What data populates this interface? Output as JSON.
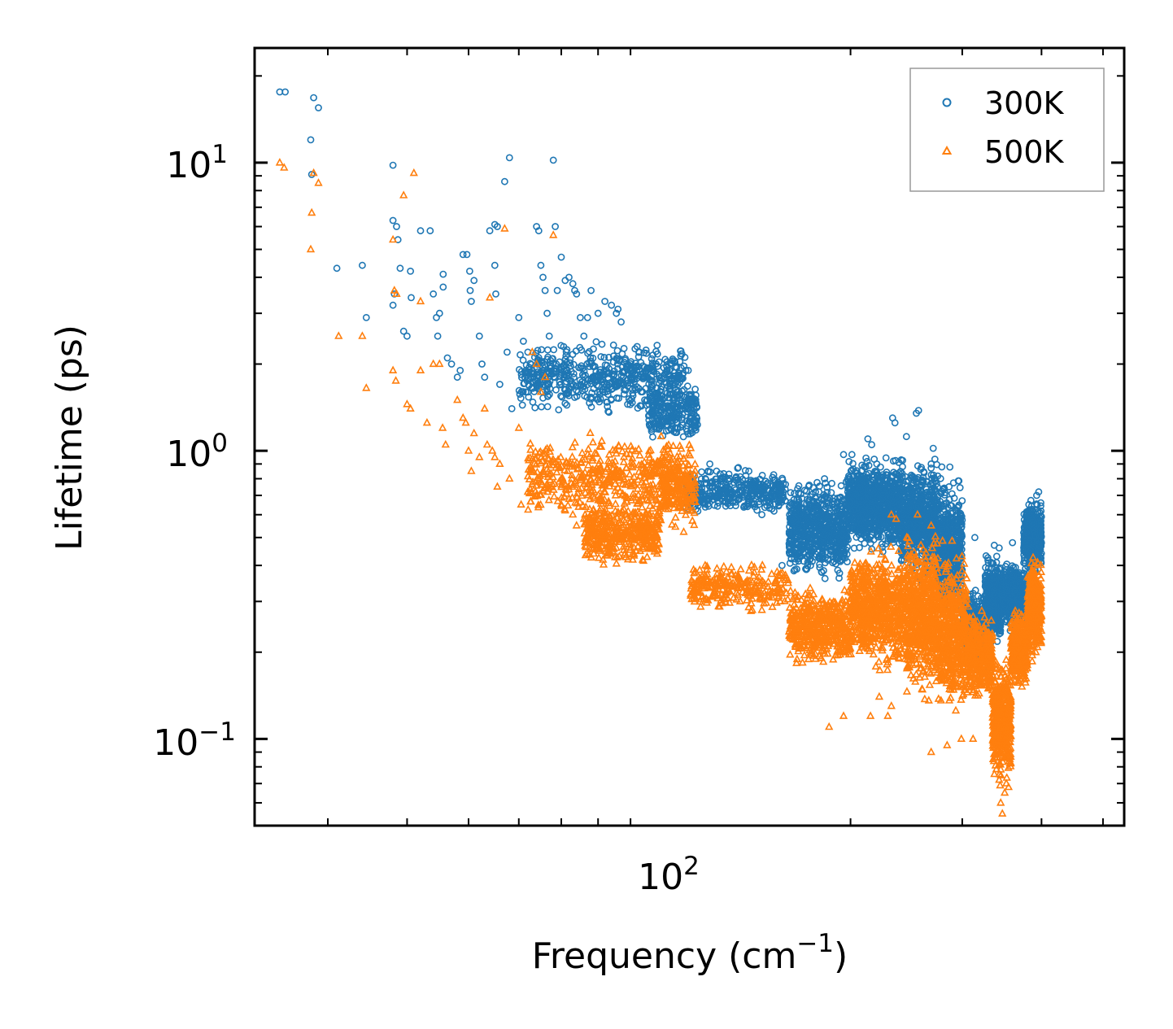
{
  "chart_data": {
    "type": "scatter",
    "title": "",
    "xlabel": "Frequency (cm",
    "xlabel_sup": "−1",
    "xlabel_end": ")",
    "ylabel": "Lifetime (ps)",
    "xscale": "log",
    "yscale": "log",
    "xlim": [
      23,
      540
    ],
    "ylim": [
      0.05,
      25
    ],
    "x_major_ticks": [
      {
        "value": 100,
        "base": "10",
        "exp": "2"
      }
    ],
    "y_major_ticks": [
      {
        "value": 0.1,
        "base": "10",
        "exp": "−1"
      },
      {
        "value": 1,
        "base": "10",
        "exp": "0"
      },
      {
        "value": 10,
        "base": "10",
        "exp": "1"
      }
    ],
    "legend_position": "top-right",
    "series": [
      {
        "name": "300K",
        "color": "#1f77b4",
        "marker": "circle",
        "points": [
          [
            25.2,
            17.6
          ],
          [
            25.7,
            17.6
          ],
          [
            28.5,
            16.8
          ],
          [
            29.0,
            15.5
          ],
          [
            28.2,
            12.0
          ],
          [
            28.3,
            9.1
          ],
          [
            31.0,
            4.3
          ],
          [
            34.0,
            4.4
          ],
          [
            34.5,
            2.9
          ],
          [
            38.0,
            9.8
          ],
          [
            38.0,
            6.3
          ],
          [
            38.5,
            6.0
          ],
          [
            38.7,
            5.4
          ],
          [
            39.0,
            4.3
          ],
          [
            38.2,
            3.5
          ],
          [
            38.0,
            3.2
          ],
          [
            39.5,
            2.6
          ],
          [
            40.0,
            2.5
          ],
          [
            40.5,
            4.2
          ],
          [
            40.6,
            3.4
          ],
          [
            42.0,
            5.8
          ],
          [
            43.5,
            5.8
          ],
          [
            44.0,
            3.5
          ],
          [
            44.5,
            2.9
          ],
          [
            44.7,
            2.5
          ],
          [
            45.6,
            3.7
          ],
          [
            45.6,
            4.1
          ],
          [
            45.0,
            3.0
          ],
          [
            46.3,
            2.1
          ],
          [
            47.0,
            2.0
          ],
          [
            48.0,
            1.8
          ],
          [
            48.5,
            1.9
          ],
          [
            49.0,
            4.8
          ],
          [
            49.7,
            4.8
          ],
          [
            50.2,
            4.2
          ],
          [
            50.3,
            3.6
          ],
          [
            51.0,
            3.9
          ],
          [
            50.5,
            3.3
          ],
          [
            52.0,
            2.5
          ],
          [
            52.5,
            2.0
          ],
          [
            53.0,
            1.8
          ],
          [
            55.0,
            6.1
          ],
          [
            55.5,
            6.0
          ],
          [
            54.0,
            5.8
          ],
          [
            55.0,
            4.4
          ],
          [
            55.2,
            3.5
          ],
          [
            56.0,
            1.7
          ],
          [
            57.0,
            8.6
          ],
          [
            58.0,
            10.4
          ],
          [
            57.5,
            2.2
          ],
          [
            58.5,
            1.4
          ],
          [
            60.0,
            2.9
          ],
          [
            61.0,
            2.4
          ],
          [
            62.0,
            2.2
          ],
          [
            62.0,
            1.6
          ],
          [
            64.0,
            6.0
          ],
          [
            64.5,
            5.8
          ],
          [
            65.0,
            4.4
          ],
          [
            65.5,
            4.0
          ],
          [
            66.0,
            3.6
          ],
          [
            66.5,
            3.0
          ],
          [
            68.0,
            10.2
          ],
          [
            68.5,
            6.0
          ],
          [
            67.0,
            2.5
          ],
          [
            69.0,
            3.6
          ],
          [
            70.0,
            4.7
          ],
          [
            71.0,
            3.9
          ],
          [
            72.0,
            4.0
          ],
          [
            73.0,
            3.8
          ],
          [
            73.5,
            3.6
          ],
          [
            74.0,
            3.5
          ],
          [
            75.0,
            2.9
          ],
          [
            76.0,
            2.5
          ],
          [
            77.0,
            2.9
          ],
          [
            78.0,
            3.6
          ],
          [
            80.0,
            3.0
          ],
          [
            82.0,
            3.3
          ],
          [
            84.0,
            3.2
          ],
          [
            85.5,
            3.0
          ],
          [
            86.0,
            3.1
          ],
          [
            87.0,
            2.8
          ],
          [
            110.0,
            1.9
          ],
          [
            111.0,
            1.9
          ],
          [
            113.5,
            1.2
          ],
          [
            120.0,
            0.9
          ],
          [
            123.0,
            0.85
          ],
          [
            128.0,
            0.72
          ],
          [
            130.0,
            0.7
          ],
          [
            140.0,
            0.65
          ],
          [
            145.0,
            0.6
          ],
          [
            156.0,
            0.4
          ],
          [
            174.0,
            0.6
          ],
          [
            182.0,
            0.8
          ],
          [
            195.0,
            0.97
          ],
          [
            201.0,
            0.97
          ],
          [
            213.0,
            1.1
          ],
          [
            216.0,
            1.05
          ],
          [
            233.0,
            1.3
          ],
          [
            235.0,
            1.25
          ],
          [
            254.0,
            1.35
          ],
          [
            256.0,
            1.38
          ],
          [
            268.0,
            0.9
          ],
          [
            270.0,
            1.02
          ],
          [
            295.0,
            0.3
          ],
          [
            307.0,
            0.22
          ],
          [
            312.0,
            0.32
          ],
          [
            327.0,
            0.17
          ],
          [
            337.0,
            0.47
          ],
          [
            343.0,
            0.46
          ],
          [
            360.0,
            0.48
          ],
          [
            379.0,
            0.52
          ],
          [
            383.0,
            0.49
          ],
          [
            393.0,
            0.7
          ],
          [
            396.0,
            0.72
          ],
          [
            399.0,
            0.66
          ],
          [
            351.0,
            0.3
          ],
          [
            314.0,
            0.5
          ],
          [
            173.0,
            0.4
          ],
          [
            180.0,
            0.38
          ],
          [
            220.0,
            0.9
          ],
          [
            245.0,
            1.12
          ],
          [
            286.0,
            0.75
          ]
        ],
        "clusters": [
          {
            "x": [
              60,
              110
            ],
            "y": [
              1.3,
              2.5
            ],
            "n": 560
          },
          {
            "x": [
              96,
              115
            ],
            "y": [
              1.0,
              1.8
            ],
            "n": 240
          },
          {
            "x": [
              110,
              158
            ],
            "y": [
              0.58,
              0.9
            ],
            "n": 380
          },
          {
            "x": [
              160,
              198
            ],
            "y": [
              0.34,
              0.85
            ],
            "n": 650
          },
          {
            "x": [
              198,
              240
            ],
            "y": [
              0.42,
              1.0
            ],
            "n": 900
          },
          {
            "x": [
              240,
              275
            ],
            "y": [
              0.33,
              1.0
            ],
            "n": 650
          },
          {
            "x": [
              275,
              300
            ],
            "y": [
              0.23,
              0.9
            ],
            "n": 500
          },
          {
            "x": [
              300,
              326
            ],
            "y": [
              0.17,
              0.35
            ],
            "n": 400
          },
          {
            "x": [
              326,
              345
            ],
            "y": [
              0.2,
              0.45
            ],
            "n": 400
          },
          {
            "x": [
              345,
              375
            ],
            "y": [
              0.23,
              0.43
            ],
            "n": 450
          },
          {
            "x": [
              375,
              400
            ],
            "y": [
              0.36,
              0.7
            ],
            "n": 450
          }
        ]
      },
      {
        "name": "500K",
        "color": "#ff7f0e",
        "marker": "triangle",
        "points": [
          [
            25.2,
            10.0
          ],
          [
            25.6,
            9.6
          ],
          [
            28.3,
            6.7
          ],
          [
            28.2,
            5.0
          ],
          [
            28.5,
            9.2
          ],
          [
            29.0,
            8.5
          ],
          [
            31.2,
            2.5
          ],
          [
            34.0,
            2.5
          ],
          [
            34.5,
            1.65
          ],
          [
            38.0,
            5.4
          ],
          [
            38.2,
            3.6
          ],
          [
            38.5,
            3.5
          ],
          [
            38.0,
            1.9
          ],
          [
            38.4,
            1.75
          ],
          [
            39.5,
            7.7
          ],
          [
            40.0,
            1.45
          ],
          [
            40.5,
            1.4
          ],
          [
            41.0,
            9.2
          ],
          [
            42.0,
            3.3
          ],
          [
            42.0,
            1.9
          ],
          [
            43.0,
            1.25
          ],
          [
            44.0,
            2.0
          ],
          [
            45.0,
            2.0
          ],
          [
            45.5,
            1.2
          ],
          [
            46.0,
            1.05
          ],
          [
            48.0,
            1.5
          ],
          [
            49.0,
            1.3
          ],
          [
            49.5,
            1.25
          ],
          [
            50.0,
            1.0
          ],
          [
            51.0,
            1.15
          ],
          [
            52.0,
            0.95
          ],
          [
            53.0,
            1.4
          ],
          [
            53.5,
            1.05
          ],
          [
            54.0,
            3.4
          ],
          [
            54.5,
            1.0
          ],
          [
            55.0,
            0.95
          ],
          [
            56.0,
            0.9
          ],
          [
            57.0,
            5.9
          ],
          [
            58.0,
            0.8
          ],
          [
            60.0,
            1.2
          ],
          [
            62.0,
            0.72
          ],
          [
            63.0,
            2.2
          ],
          [
            64.0,
            2.0
          ],
          [
            65.0,
            1.6
          ],
          [
            66.0,
            1.8
          ],
          [
            68.0,
            5.6
          ],
          [
            70.0,
            0.65
          ],
          [
            71.0,
            0.62
          ],
          [
            72.0,
            0.68
          ],
          [
            73.0,
            0.6
          ],
          [
            74.0,
            0.55
          ],
          [
            76.0,
            0.58
          ],
          [
            60.5,
            0.65
          ],
          [
            55.5,
            0.75
          ],
          [
            50.5,
            0.85
          ],
          [
            114.0,
            0.38
          ],
          [
            118.0,
            0.4
          ],
          [
            123.0,
            0.36
          ],
          [
            128.0,
            0.33
          ],
          [
            134.0,
            0.3
          ],
          [
            140.0,
            0.28
          ],
          [
            145.0,
            0.28
          ],
          [
            155.0,
            0.3
          ],
          [
            185.0,
            0.11
          ],
          [
            195.0,
            0.12
          ],
          [
            215.0,
            0.12
          ],
          [
            222.0,
            0.14
          ],
          [
            229.0,
            0.12
          ],
          [
            232.0,
            0.13
          ],
          [
            268.0,
            0.09
          ],
          [
            284.0,
            0.095
          ],
          [
            299.0,
            0.1
          ],
          [
            312.0,
            0.1
          ],
          [
            345.0,
            0.06
          ],
          [
            347.0,
            0.055
          ],
          [
            350.0,
            0.065
          ],
          [
            352.0,
            0.07
          ],
          [
            355.0,
            0.068
          ],
          [
            268.0,
            0.55
          ],
          [
            255.0,
            0.6
          ],
          [
            232.0,
            0.6
          ],
          [
            236.0,
            0.58
          ]
        ],
        "clusters": [
          {
            "x": [
              62,
              112
            ],
            "y": [
              0.55,
              1.2
            ],
            "n": 520
          },
          {
            "x": [
              76,
              100
            ],
            "y": [
              0.38,
              0.7
            ],
            "n": 420
          },
          {
            "x": [
              100,
              114
            ],
            "y": [
              0.5,
              1.1
            ],
            "n": 160
          },
          {
            "x": [
              112,
              160
            ],
            "y": [
              0.27,
              0.42
            ],
            "n": 260
          },
          {
            "x": [
              160,
              200
            ],
            "y": [
              0.17,
              0.35
            ],
            "n": 480
          },
          {
            "x": [
              200,
              245
            ],
            "y": [
              0.16,
              0.5
            ],
            "n": 700
          },
          {
            "x": [
              245,
              275
            ],
            "y": [
              0.13,
              0.55
            ],
            "n": 600
          },
          {
            "x": [
              275,
              305
            ],
            "y": [
              0.11,
              0.5
            ],
            "n": 500
          },
          {
            "x": [
              305,
              335
            ],
            "y": [
              0.13,
              0.3
            ],
            "n": 350
          },
          {
            "x": [
              335,
              358
            ],
            "y": [
              0.065,
              0.2
            ],
            "n": 450
          },
          {
            "x": [
              358,
              380
            ],
            "y": [
              0.14,
              0.3
            ],
            "n": 350
          },
          {
            "x": [
              380,
              400
            ],
            "y": [
              0.18,
              0.45
            ],
            "n": 350
          }
        ]
      }
    ]
  }
}
